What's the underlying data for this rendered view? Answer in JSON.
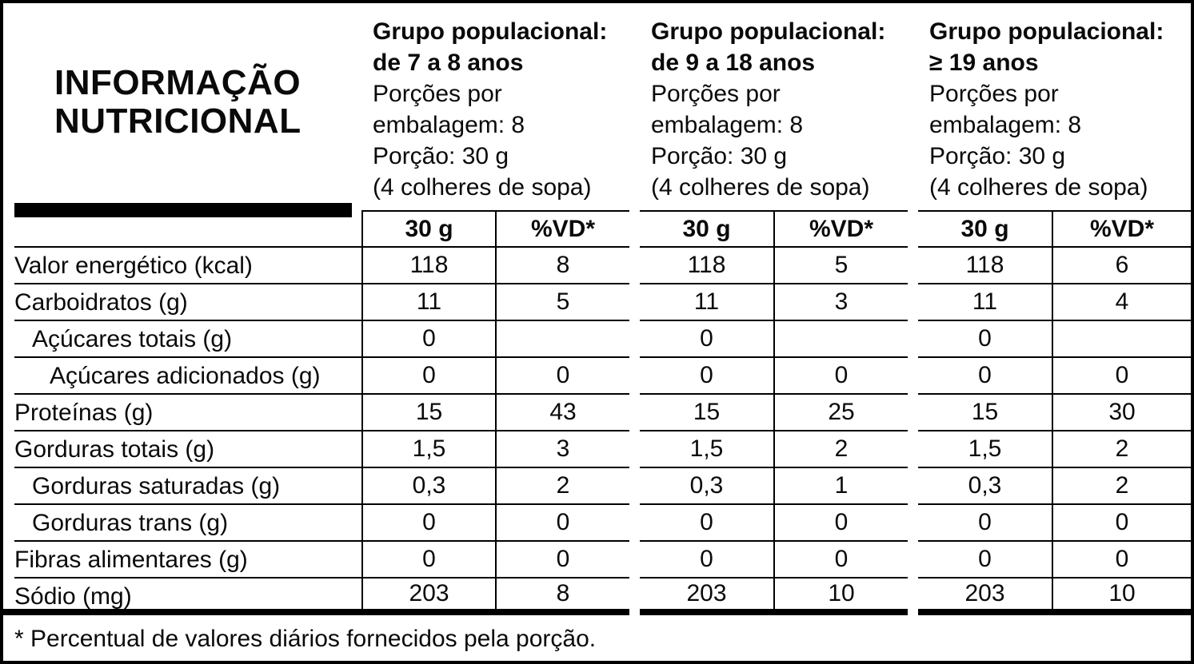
{
  "title": "INFORMAÇÃO NUTRICIONAL",
  "footnote": "* Percentual de valores diários fornecidos pela porção.",
  "groups": [
    {
      "title_line1": "Grupo populacional:",
      "title_line2": "de 7 a 8 anos",
      "servings": "Porções por embalagem: 8",
      "portion": "Porção: 30 g",
      "portion_note": "(4 colheres de sopa)",
      "amount_header": "30 g",
      "dv_header": "%VD*"
    },
    {
      "title_line1": "Grupo populacional:",
      "title_line2": "de 9 a 18 anos",
      "servings": "Porções por embalagem: 8",
      "portion": "Porção: 30 g",
      "portion_note": "(4 colheres de sopa)",
      "amount_header": "30 g",
      "dv_header": "%VD*"
    },
    {
      "title_line1": "Grupo populacional:",
      "title_line2": "≥ 19 anos",
      "servings": "Porções por embalagem: 8",
      "portion": "Porção: 30 g",
      "portion_note": "(4 colheres de sopa)",
      "amount_header": "30 g",
      "dv_header": "%VD*"
    }
  ],
  "table": {
    "rows": [
      {
        "label": "Valor energético (kcal)",
        "indent": 0,
        "values": [
          [
            "118",
            "8"
          ],
          [
            "118",
            "5"
          ],
          [
            "118",
            "6"
          ]
        ]
      },
      {
        "label": "Carboidratos (g)",
        "indent": 0,
        "values": [
          [
            "11",
            "5"
          ],
          [
            "11",
            "3"
          ],
          [
            "11",
            "4"
          ]
        ]
      },
      {
        "label": "Açúcares totais (g)",
        "indent": 1,
        "values": [
          [
            "0",
            ""
          ],
          [
            "0",
            ""
          ],
          [
            "0",
            ""
          ]
        ]
      },
      {
        "label": "Açúcares adicionados (g)",
        "indent": 2,
        "values": [
          [
            "0",
            "0"
          ],
          [
            "0",
            "0"
          ],
          [
            "0",
            "0"
          ]
        ]
      },
      {
        "label": "Proteínas (g)",
        "indent": 0,
        "values": [
          [
            "15",
            "43"
          ],
          [
            "15",
            "25"
          ],
          [
            "15",
            "30"
          ]
        ]
      },
      {
        "label": "Gorduras totais (g)",
        "indent": 0,
        "values": [
          [
            "1,5",
            "3"
          ],
          [
            "1,5",
            "2"
          ],
          [
            "1,5",
            "2"
          ]
        ]
      },
      {
        "label": "Gorduras saturadas (g)",
        "indent": 1,
        "values": [
          [
            "0,3",
            "2"
          ],
          [
            "0,3",
            "1"
          ],
          [
            "0,3",
            "2"
          ]
        ]
      },
      {
        "label": "Gorduras trans (g)",
        "indent": 1,
        "values": [
          [
            "0",
            "0"
          ],
          [
            "0",
            "0"
          ],
          [
            "0",
            "0"
          ]
        ]
      },
      {
        "label": "Fibras alimentares (g)",
        "indent": 0,
        "values": [
          [
            "0",
            "0"
          ],
          [
            "0",
            "0"
          ],
          [
            "0",
            "0"
          ]
        ]
      },
      {
        "label": "Sódio (mg)",
        "indent": 0,
        "values": [
          [
            "203",
            "8"
          ],
          [
            "203",
            "10"
          ],
          [
            "203",
            "10"
          ]
        ]
      }
    ]
  }
}
